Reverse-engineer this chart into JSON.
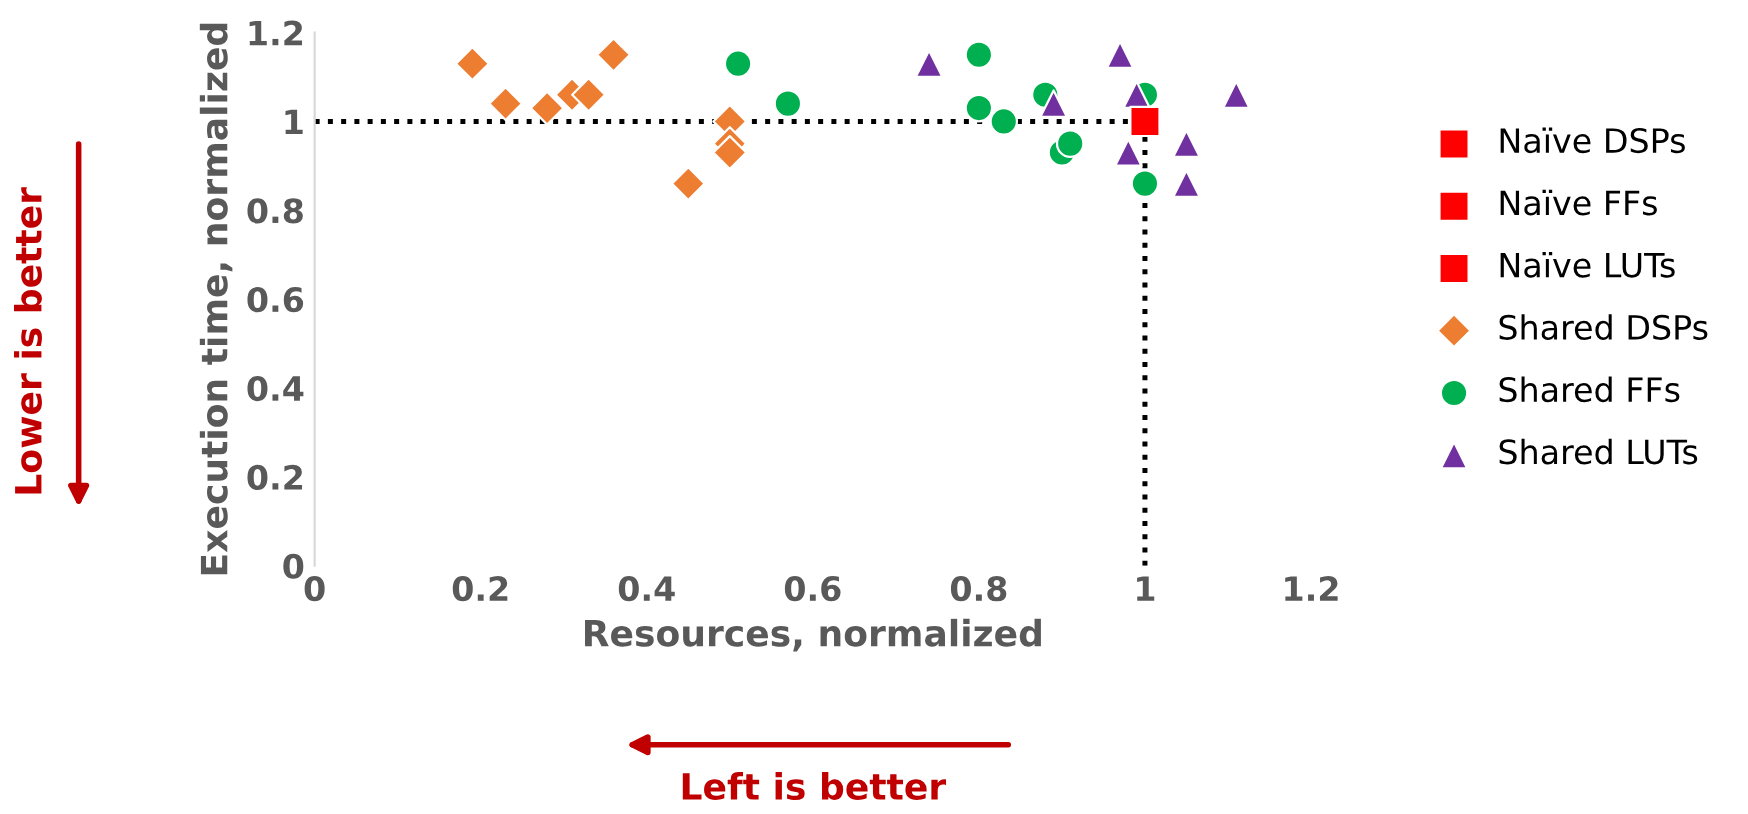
{
  "chart_data": {
    "type": "scatter",
    "xlabel": "Resources, normalized",
    "ylabel": "Execution time, normalized",
    "xlim": [
      0,
      1.2
    ],
    "ylim": [
      0,
      1.2
    ],
    "xticks": [
      0,
      0.2,
      0.4,
      0.6,
      0.8,
      1,
      1.2
    ],
    "yticks": [
      0,
      0.2,
      0.4,
      0.6,
      0.8,
      1,
      1.2
    ],
    "grid": false,
    "legend": "right",
    "series": [
      {
        "type": "line",
        "color": "#000000",
        "line_style": "dotted",
        "marker": "none",
        "x": [
          0,
          1
        ],
        "values": [
          1,
          1
        ]
      },
      {
        "type": "line",
        "color": "#000000",
        "line_style": "dotted",
        "marker": "none",
        "x": [
          1,
          1
        ],
        "values": [
          0,
          1
        ]
      },
      {
        "name": "Naïve DSPs",
        "color": "#ff0000",
        "marker": "square"
      },
      {
        "name": "Naïve FFs",
        "color": "#ff0000",
        "marker": "square"
      },
      {
        "name": "Naïve LUTs",
        "color": "#ff0000",
        "marker": "square",
        "x": [
          1
        ],
        "values": [
          1
        ]
      },
      {
        "name": "Shared DSPs",
        "color": "#ed7d31",
        "marker": "diamond",
        "x": [
          0.19,
          0.23,
          0.28,
          0.31,
          0.33,
          0.36,
          0.5,
          0.5,
          0.5,
          0.45
        ],
        "values": [
          1.13,
          1.04,
          1.03,
          1.06,
          1.06,
          1.15,
          1.0,
          0.95,
          0.93,
          0.86
        ]
      },
      {
        "name": "Shared FFs",
        "color": "#00b050",
        "marker": "circle",
        "x": [
          0.51,
          0.57,
          0.8,
          0.8,
          0.83,
          0.88,
          0.9,
          0.91,
          1.0,
          1.0
        ],
        "values": [
          1.13,
          1.04,
          1.15,
          1.03,
          1.0,
          1.06,
          0.93,
          0.95,
          1.06,
          0.86
        ]
      },
      {
        "name": "Shared LUTs",
        "color": "#7030a0",
        "marker": "triangle",
        "x": [
          0.74,
          0.97,
          0.89,
          0.99,
          0.98,
          1.05,
          1.05,
          1.11
        ],
        "values": [
          1.13,
          1.15,
          1.04,
          1.06,
          0.93,
          0.95,
          0.86,
          1.06
        ]
      }
    ],
    "annotations": [
      "Lower is better",
      "Left is better"
    ]
  }
}
